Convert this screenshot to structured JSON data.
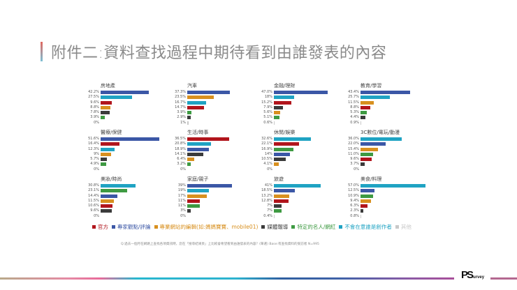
{
  "header": {
    "title": "附件二:資料查找過程中期待看到由誰發表的內容"
  },
  "colors": {
    "官方": "#b1151c",
    "專家觀點/評論": "#3b57a6",
    "專業網站的編輯": "#d8901f",
    "媒體報導": "#3b3b3b",
    "特定的名人/網紅": "#3e9a42",
    "不會在意誰是創作者": "#1fa3c3",
    "其他": "#c8c8c8"
  },
  "legend": [
    {
      "label": "官方",
      "color": "#b1151c"
    },
    {
      "label": "專家觀點/評論",
      "color": "#3b57a6"
    },
    {
      "label": "專業網站的編輯(如:媽媽寶寶、mobile01)",
      "color": "#d8901f"
    },
    {
      "label": "媒體報導",
      "color": "#3b3b3b"
    },
    {
      "label": "特定的名人/網紅",
      "color": "#3e9a42"
    },
    {
      "label": "不會在意誰是創作者",
      "color": "#1fa3c3"
    },
    {
      "label": "其他",
      "color": "#c8c8c8"
    }
  ],
  "footnote": "Q:過去一個月在網路上查找各項資訊時，您在「搜尋結果頁」上比較會希望看到由誰發表的內容？(單選) Base:有查找資料的受訪者 N=995",
  "logo": {
    "ps": "PS",
    "survey": "urvey"
  },
  "chart_data": {
    "type": "bar",
    "orientation": "horizontal",
    "title": "附件二:資料查找過程中期待看到由誰發表的內容",
    "note": "Small multiples; within each panel bars are sorted descending, each bar colored by source category",
    "legend_position": "bottom",
    "grid": false,
    "xlim": [
      0,
      60
    ],
    "panels": [
      {
        "title": "房地產",
        "bars": [
          {
            "series": "專家觀點/評論",
            "value": 42.2,
            "label": "42.2%"
          },
          {
            "series": "不會在意誰是創作者",
            "value": 27.5,
            "label": "27.5%"
          },
          {
            "series": "官方",
            "value": 9.6,
            "label": "9.6%"
          },
          {
            "series": "專業網站的編輯",
            "value": 8.8,
            "label": "8.8%"
          },
          {
            "series": "媒體報導",
            "value": 7.8,
            "label": "7.8%"
          },
          {
            "series": "特定的名人/網紅",
            "value": 3.9,
            "label": "3.9%"
          },
          {
            "series": "其他",
            "value": 0,
            "label": "0%"
          }
        ]
      },
      {
        "title": "汽車",
        "bars": [
          {
            "series": "專家觀點/評論",
            "value": 37.3,
            "label": "37.3%"
          },
          {
            "series": "專業網站的編輯",
            "value": 23.5,
            "label": "23.5%"
          },
          {
            "series": "不會在意誰是創作者",
            "value": 16.7,
            "label": "16.7%"
          },
          {
            "series": "官方",
            "value": 14.7,
            "label": "14.7%"
          },
          {
            "series": "特定的名人/網紅",
            "value": 3.9,
            "label": "3.9%"
          },
          {
            "series": "媒體報導",
            "value": 2.9,
            "label": "2.9%"
          },
          {
            "series": "其他",
            "value": 1,
            "label": "1%"
          }
        ]
      },
      {
        "title": "金融/理財",
        "bars": [
          {
            "series": "專家觀點/評論",
            "value": 47.0,
            "label": "47.0%"
          },
          {
            "series": "不會在意誰是創作者",
            "value": 18,
            "label": "18%"
          },
          {
            "series": "官方",
            "value": 15.2,
            "label": "15.2%"
          },
          {
            "series": "媒體報導",
            "value": 7.9,
            "label": "7.9%"
          },
          {
            "series": "專業網站的編輯",
            "value": 5.6,
            "label": "5.6%"
          },
          {
            "series": "特定的名人/網紅",
            "value": 5.1,
            "label": "5.1%"
          },
          {
            "series": "其他",
            "value": 0.6,
            "label": "0.6%"
          }
        ]
      },
      {
        "title": "教育/學習",
        "bars": [
          {
            "series": "專家觀點/評論",
            "value": 43.4,
            "label": "43.4%"
          },
          {
            "series": "不會在意誰是創作者",
            "value": 25.7,
            "label": "25.7%"
          },
          {
            "series": "專業網站的編輯",
            "value": 11.5,
            "label": "11.5%"
          },
          {
            "series": "官方",
            "value": 8.8,
            "label": "8.8%"
          },
          {
            "series": "特定的名人/網紅",
            "value": 5.3,
            "label": "5.3%"
          },
          {
            "series": "媒體報導",
            "value": 4.4,
            "label": "4.4%"
          },
          {
            "series": "其他",
            "value": 0.9,
            "label": "0.9%"
          }
        ]
      },
      {
        "title": "醫療/保健",
        "bars": [
          {
            "series": "專家觀點/評論",
            "value": 51.6,
            "label": "51.6%"
          },
          {
            "series": "官方",
            "value": 16.4,
            "label": "16.4%"
          },
          {
            "series": "不會在意誰是創作者",
            "value": 12.3,
            "label": "12.3%"
          },
          {
            "series": "專業網站的編輯",
            "value": 9,
            "label": "9%"
          },
          {
            "series": "媒體報導",
            "value": 5.7,
            "label": "5.7%"
          },
          {
            "series": "特定的名人/網紅",
            "value": 4.9,
            "label": "4.9%"
          },
          {
            "series": "其他",
            "value": 0,
            "label": "0%"
          }
        ]
      },
      {
        "title": "生活/時事",
        "bars": [
          {
            "series": "官方",
            "value": 36.5,
            "label": "36.5%"
          },
          {
            "series": "不會在意誰是創作者",
            "value": 20.8,
            "label": "20.8%"
          },
          {
            "series": "專家觀點/評論",
            "value": 18.9,
            "label": "18.9%"
          },
          {
            "series": "媒體報導",
            "value": 14.1,
            "label": "14.1%"
          },
          {
            "series": "專業網站的編輯",
            "value": 6.4,
            "label": "6.4%"
          },
          {
            "series": "特定的名人/網紅",
            "value": 3.2,
            "label": "3.2%"
          },
          {
            "series": "其他",
            "value": 0,
            "label": "0%"
          }
        ]
      },
      {
        "title": "休閒/娛樂",
        "bars": [
          {
            "series": "不會在意誰是創作者",
            "value": 32.6,
            "label": "32.6%"
          },
          {
            "series": "官方",
            "value": 22.1,
            "label": "22.1%"
          },
          {
            "series": "特定的名人/網紅",
            "value": 16.9,
            "label": "16.9%"
          },
          {
            "series": "專家觀點/評論",
            "value": 14,
            "label": "14%"
          },
          {
            "series": "媒體報導",
            "value": 10.5,
            "label": "10.5%"
          },
          {
            "series": "專業網站的編輯",
            "value": 4.1,
            "label": "4.1%"
          },
          {
            "series": "其他",
            "value": 0,
            "label": "0%"
          }
        ]
      },
      {
        "title": "3C數位/電玩/動漫",
        "bars": [
          {
            "series": "不會在意誰是創作者",
            "value": 36.0,
            "label": "36.0%"
          },
          {
            "series": "專家觀點/評論",
            "value": 22.0,
            "label": "22.0%"
          },
          {
            "series": "專業網站的編輯",
            "value": 15.4,
            "label": "15.4%"
          },
          {
            "series": "特定的名人/網紅",
            "value": 11.0,
            "label": "11.0%"
          },
          {
            "series": "官方",
            "value": 9.6,
            "label": "9.6%"
          },
          {
            "series": "媒體報導",
            "value": 3.7,
            "label": "3.7%"
          },
          {
            "series": "其他",
            "value": 0,
            "label": "0%"
          }
        ]
      },
      {
        "title": "美妝/時尚",
        "bars": [
          {
            "series": "不會在意誰是創作者",
            "value": 30.8,
            "label": "30.8%"
          },
          {
            "series": "特定的名人/網紅",
            "value": 23.1,
            "label": "23.1%"
          },
          {
            "series": "專家觀點/評論",
            "value": 14.4,
            "label": "14.4%"
          },
          {
            "series": "專業網站的編輯",
            "value": 11.5,
            "label": "11.5%"
          },
          {
            "series": "官方",
            "value": 10.6,
            "label": "10.6%"
          },
          {
            "series": "媒體報導",
            "value": 9.6,
            "label": "9.6%"
          },
          {
            "series": "其他",
            "value": 0,
            "label": "0%"
          }
        ]
      },
      {
        "title": "家庭/親子",
        "bars": [
          {
            "series": "專家觀點/評論",
            "value": 39,
            "label": "39%"
          },
          {
            "series": "不會在意誰是創作者",
            "value": 19,
            "label": "19%"
          },
          {
            "series": "專業網站的編輯",
            "value": 17,
            "label": "17%"
          },
          {
            "series": "官方",
            "value": 11,
            "label": "11%"
          },
          {
            "series": "特定的名人/網紅",
            "value": 11,
            "label": "11%"
          },
          {
            "series": "媒體報導",
            "value": 3,
            "label": "3%"
          },
          {
            "series": "其他",
            "value": 0,
            "label": "0%"
          }
        ]
      },
      {
        "title": "旅遊",
        "bars": [
          {
            "series": "不會在意誰是創作者",
            "value": 41,
            "label": "41%"
          },
          {
            "series": "專家觀點/評論",
            "value": 18.5,
            "label": "18.5%"
          },
          {
            "series": "專業網站的編輯",
            "value": 13.2,
            "label": "13.2%"
          },
          {
            "series": "官方",
            "value": 12.8,
            "label": "12.8%"
          },
          {
            "series": "媒體報導",
            "value": 7,
            "label": "7%"
          },
          {
            "series": "特定的名人/網紅",
            "value": 7,
            "label": "7%"
          },
          {
            "series": "其他",
            "value": 0.4,
            "label": "0.4%"
          }
        ]
      },
      {
        "title": "美食/料理",
        "bars": [
          {
            "series": "不會在意誰是創作者",
            "value": 57.0,
            "label": "57.0%"
          },
          {
            "series": "專家觀點/評論",
            "value": 12.5,
            "label": "12.5%"
          },
          {
            "series": "特定的名人/網紅",
            "value": 10.9,
            "label": "10.9%"
          },
          {
            "series": "專業網站的編輯",
            "value": 9.4,
            "label": "9.4%"
          },
          {
            "series": "官方",
            "value": 6.3,
            "label": "6.3%"
          },
          {
            "series": "媒體報導",
            "value": 2.3,
            "label": "2.3%"
          },
          {
            "series": "其他",
            "value": 0.8,
            "label": "0.8%"
          }
        ]
      }
    ]
  }
}
